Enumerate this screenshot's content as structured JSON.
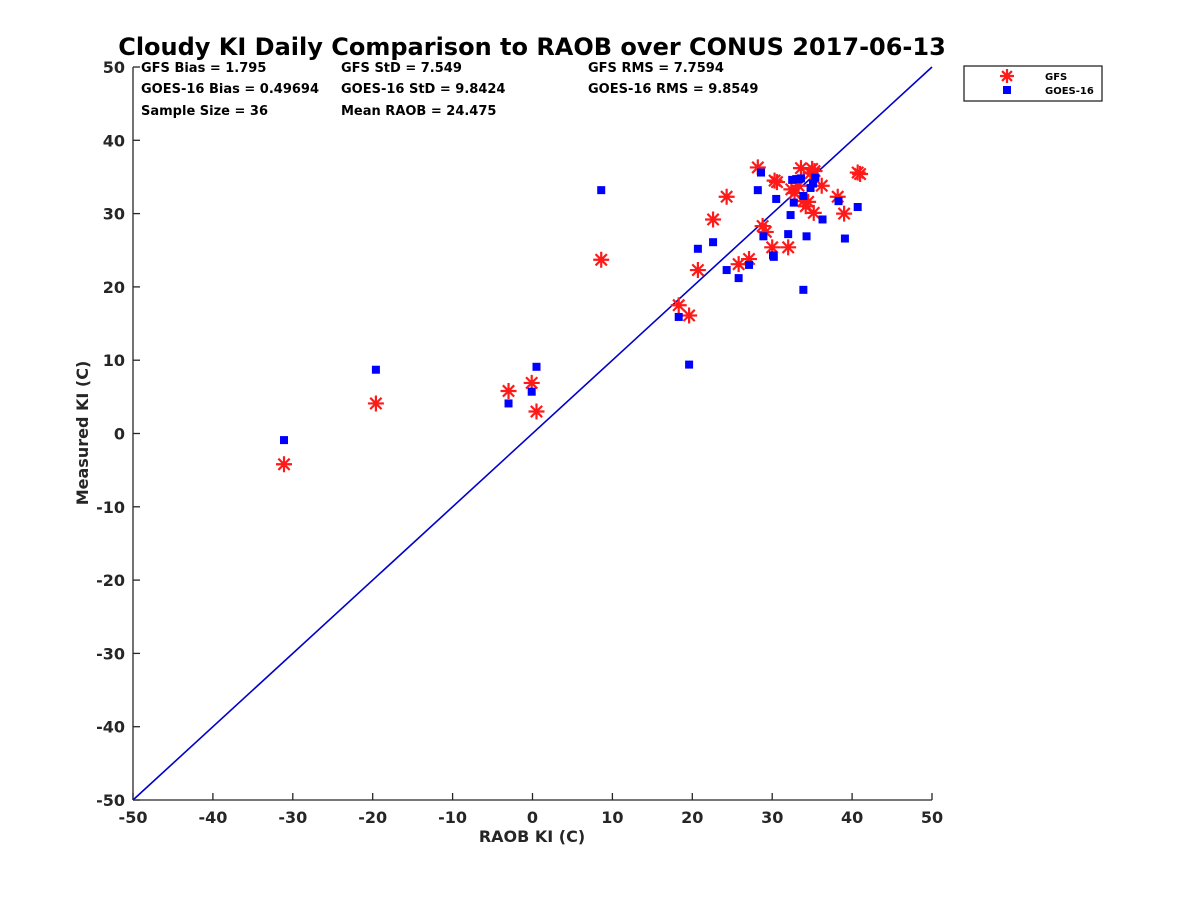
{
  "chart_data": {
    "type": "scatter",
    "title": "Cloudy KI Daily Comparison to RAOB over CONUS 2017-06-13",
    "xlabel": "RAOB KI (C)",
    "ylabel": "Measured KI (C)",
    "xlim": [
      -50,
      50
    ],
    "ylim": [
      -50,
      50
    ],
    "xticks": [
      "-50",
      "-40",
      "-30",
      "-20",
      "-10",
      "0",
      "10",
      "20",
      "30",
      "40",
      "50"
    ],
    "yticks": [
      "-50",
      "-40",
      "-30",
      "-20",
      "-10",
      "0",
      "10",
      "20",
      "30",
      "40",
      "50"
    ],
    "grid": false,
    "legend_position": "top-right outside",
    "reference_line": {
      "type": "one-to-one",
      "color": "#0000cc"
    },
    "stats": [
      [
        "GFS Bias = 1.795",
        "GFS StD = 7.549",
        "GFS RMS = 7.7594"
      ],
      [
        "GOES-16 Bias = 0.49694",
        "GOES-16 StD = 9.8424",
        "GOES-16 RMS = 9.8549"
      ],
      [
        "Sample Size = 36",
        "Mean RAOB = 24.475",
        ""
      ]
    ],
    "series": [
      {
        "name": "GFS",
        "marker": "asterisk",
        "color": "#ff1a1a",
        "points": [
          [
            -31.1,
            -4.2
          ],
          [
            -19.6,
            4.1
          ],
          [
            -3.0,
            5.8
          ],
          [
            -0.1,
            6.9
          ],
          [
            0.5,
            3.0
          ],
          [
            8.6,
            23.7
          ],
          [
            18.3,
            17.5
          ],
          [
            19.6,
            16.1
          ],
          [
            20.7,
            22.3
          ],
          [
            22.6,
            29.2
          ],
          [
            24.3,
            32.3
          ],
          [
            25.8,
            23.1
          ],
          [
            27.1,
            23.8
          ],
          [
            28.2,
            36.3
          ],
          [
            28.8,
            28.3
          ],
          [
            29.2,
            27.5
          ],
          [
            30.0,
            25.4
          ],
          [
            30.3,
            34.5
          ],
          [
            30.6,
            34.3
          ],
          [
            32.0,
            25.4
          ],
          [
            32.4,
            33.3
          ],
          [
            32.8,
            32.8
          ],
          [
            33.3,
            33.8
          ],
          [
            33.6,
            36.2
          ],
          [
            33.9,
            31.7
          ],
          [
            34.2,
            31.0
          ],
          [
            34.5,
            31.6
          ],
          [
            34.8,
            35.5
          ],
          [
            35.0,
            36.1
          ],
          [
            35.2,
            30.1
          ],
          [
            35.3,
            35.8
          ],
          [
            36.2,
            33.8
          ],
          [
            38.2,
            32.3
          ],
          [
            39.0,
            30.0
          ],
          [
            40.7,
            35.6
          ],
          [
            41.0,
            35.4
          ]
        ]
      },
      {
        "name": "GOES-16",
        "marker": "square",
        "color": "#0000ff",
        "points": [
          [
            -31.1,
            -0.9
          ],
          [
            -19.6,
            8.7
          ],
          [
            -3.0,
            4.1
          ],
          [
            -0.1,
            5.7
          ],
          [
            0.5,
            9.1
          ],
          [
            8.6,
            33.2
          ],
          [
            18.3,
            15.9
          ],
          [
            19.6,
            9.4
          ],
          [
            20.7,
            25.2
          ],
          [
            22.6,
            26.1
          ],
          [
            24.3,
            22.3
          ],
          [
            25.8,
            21.2
          ],
          [
            27.1,
            23.0
          ],
          [
            28.2,
            33.2
          ],
          [
            28.6,
            35.6
          ],
          [
            28.9,
            26.9
          ],
          [
            30.2,
            24.1
          ],
          [
            30.5,
            32.0
          ],
          [
            32.0,
            27.2
          ],
          [
            32.3,
            29.8
          ],
          [
            32.5,
            34.6
          ],
          [
            32.7,
            31.5
          ],
          [
            33.0,
            34.7
          ],
          [
            33.3,
            34.7
          ],
          [
            33.6,
            34.8
          ],
          [
            33.9,
            19.6
          ],
          [
            34.3,
            26.9
          ],
          [
            34.8,
            33.5
          ],
          [
            35.1,
            34.1
          ],
          [
            35.4,
            34.9
          ],
          [
            36.3,
            29.2
          ],
          [
            38.3,
            31.7
          ],
          [
            39.1,
            26.6
          ],
          [
            40.7,
            30.9
          ],
          [
            30.1,
            24.3
          ],
          [
            33.9,
            32.4
          ]
        ]
      }
    ]
  }
}
